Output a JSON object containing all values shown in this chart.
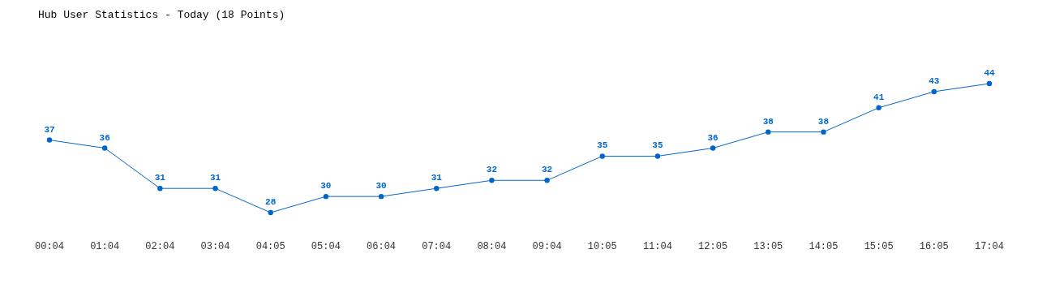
{
  "chart_data": {
    "type": "line",
    "title": "Hub User Statistics - Today (18 Points)",
    "categories": [
      "00:04",
      "01:04",
      "02:04",
      "03:04",
      "04:05",
      "05:04",
      "06:04",
      "07:04",
      "08:04",
      "09:04",
      "10:05",
      "11:04",
      "12:05",
      "13:05",
      "14:05",
      "15:05",
      "16:05",
      "17:04"
    ],
    "series": [
      {
        "color": "#0066cc",
        "values": [
          37,
          36,
          31,
          31,
          28,
          30,
          30,
          31,
          32,
          32,
          35,
          35,
          36,
          38,
          38,
          41,
          43,
          44
        ]
      }
    ],
    "data_labels": true,
    "marker": "circle"
  }
}
